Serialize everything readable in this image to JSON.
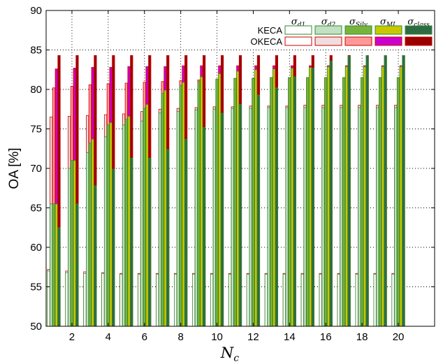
{
  "chart_data": {
    "type": "bar",
    "ylabel": "OA [%]",
    "xlabel": "N",
    "xlabel_sub": "c",
    "ylim": [
      50,
      90
    ],
    "y_ticks": [
      50,
      55,
      60,
      65,
      70,
      75,
      80,
      85,
      90
    ],
    "x_ticks": [
      2,
      4,
      6,
      8,
      10,
      12,
      14,
      16,
      18,
      20
    ],
    "x": [
      1,
      2,
      3,
      4,
      5,
      6,
      7,
      8,
      9,
      10,
      11,
      12,
      13,
      14,
      15,
      16,
      17,
      18,
      19,
      20
    ],
    "grid": true,
    "legend_position": "top-right",
    "measures": [
      {
        "sym": "σ",
        "sub": "d1"
      },
      {
        "sym": "σ",
        "sub": "d2"
      },
      {
        "sym": "σ",
        "sub": "Silv"
      },
      {
        "sym": "σ",
        "sub": "ML"
      },
      {
        "sym": "σ",
        "sub": "class"
      }
    ],
    "methods": [
      "KECA",
      "OKECA"
    ],
    "colors": {
      "KECA": [
        "#ffffff",
        "#c2e0c2",
        "#78b43c",
        "#c8c800",
        "#2e6b44"
      ],
      "OKECA": [
        "#ffffff",
        "#f0dede",
        "#ff9999",
        "#cc00cc",
        "#990000"
      ],
      "KECA_edge": "#2e8b2e",
      "OKECA_edge": "#cc0000"
    },
    "series": [
      {
        "name": "KECA",
        "sub": "d1",
        "values": [
          57.0,
          56.8,
          56.7,
          56.7,
          56.6,
          56.6,
          56.6,
          56.6,
          56.6,
          56.6,
          56.6,
          56.6,
          56.6,
          56.6,
          56.6,
          56.6,
          56.6,
          56.6,
          56.6,
          56.6
        ]
      },
      {
        "name": "OKECA",
        "sub": "d1",
        "values": [
          57.2,
          57.0,
          56.9,
          56.8,
          56.7,
          56.7,
          56.7,
          56.7,
          56.7,
          56.7,
          56.7,
          56.7,
          56.7,
          56.7,
          56.7,
          56.7,
          56.7,
          56.7,
          56.7,
          56.7
        ]
      },
      {
        "name": "KECA",
        "sub": "d2",
        "values": [
          65.5,
          70.0,
          72.0,
          74.0,
          75.5,
          76.0,
          77.0,
          77.2,
          77.4,
          77.5,
          77.6,
          77.6,
          77.7,
          77.7,
          77.7,
          77.7,
          77.7,
          77.7,
          77.7,
          77.7
        ]
      },
      {
        "name": "OKECA",
        "sub": "d2",
        "values": [
          76.5,
          76.6,
          76.7,
          76.8,
          76.9,
          77.2,
          77.5,
          77.6,
          77.7,
          77.8,
          77.8,
          77.9,
          77.9,
          77.9,
          78.0,
          78.0,
          78.0,
          78.0,
          78.0,
          78.0
        ]
      },
      {
        "name": "KECA",
        "sub": "Silv",
        "values": [
          65.5,
          71.0,
          73.2,
          75.5,
          76.2,
          77.6,
          79.5,
          80.5,
          81.0,
          81.3,
          81.4,
          81.4,
          81.5,
          81.5,
          81.5,
          81.5,
          81.5,
          81.5,
          81.5,
          81.5
        ]
      },
      {
        "name": "OKECA",
        "sub": "Silv",
        "values": [
          80.2,
          80.4,
          80.6,
          80.7,
          80.8,
          80.9,
          81.0,
          81.1,
          81.2,
          81.3,
          81.4,
          81.4,
          81.5,
          81.5,
          81.5,
          81.5,
          81.5,
          81.5,
          81.5,
          81.5
        ]
      },
      {
        "name": "KECA",
        "sub": "ML",
        "values": [
          65.5,
          71.0,
          73.7,
          75.8,
          76.6,
          78.1,
          79.9,
          80.9,
          81.6,
          82.0,
          82.3,
          82.5,
          82.6,
          82.7,
          82.8,
          82.9,
          82.9,
          82.9,
          82.9,
          82.9
        ]
      },
      {
        "name": "OKECA",
        "sub": "ML",
        "values": [
          82.6,
          82.7,
          82.8,
          82.8,
          82.9,
          82.9,
          82.9,
          83.0,
          83.0,
          83.0,
          83.0,
          83.0,
          83.0,
          83.0,
          83.0,
          83.0,
          83.0,
          83.0,
          83.0,
          83.0
        ]
      },
      {
        "name": "KECA",
        "sub": "class",
        "values": [
          62.5,
          65.5,
          67.8,
          69.9,
          71.3,
          71.3,
          72.4,
          73.7,
          75.2,
          77.0,
          78.1,
          79.3,
          80.2,
          81.6,
          82.7,
          83.6,
          84.2,
          84.3,
          84.3,
          84.3
        ]
      },
      {
        "name": "OKECA",
        "sub": "class",
        "values": [
          84.3,
          84.3,
          84.3,
          84.3,
          84.3,
          84.3,
          84.3,
          84.3,
          84.3,
          84.3,
          84.3,
          84.3,
          84.3,
          84.3,
          84.3,
          84.3,
          84.3,
          84.3,
          84.3,
          84.3
        ]
      }
    ]
  }
}
